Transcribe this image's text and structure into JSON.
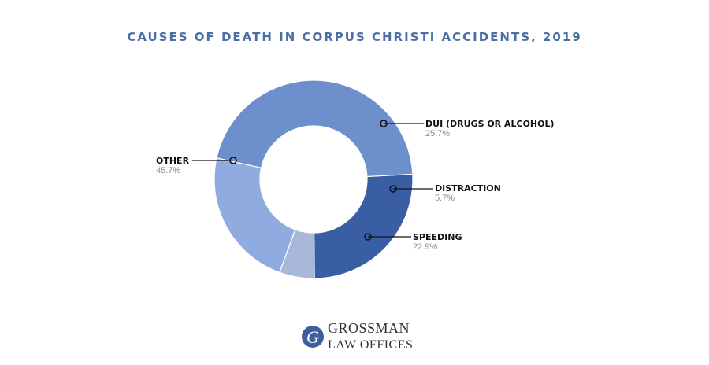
{
  "chart_data": {
    "type": "pie",
    "donut": true,
    "title": "CAUSES OF DEATH IN CORPUS CHRISTI ACCIDENTS, 2019",
    "start_angle_deg": 87,
    "slices": [
      {
        "label": "DUI (DRUGS OR ALCOHOL)",
        "value": 25.7,
        "pct_label": "25.7%",
        "color": "#3a5ea3",
        "side": "right"
      },
      {
        "label": "DISTRACTION",
        "value": 5.7,
        "pct_label": "5.7%",
        "color": "#a7b8d8",
        "side": "right"
      },
      {
        "label": "SPEEDING",
        "value": 22.9,
        "pct_label": "22.9%",
        "color": "#8fabdf",
        "side": "right"
      },
      {
        "label": "OTHER",
        "value": 45.7,
        "pct_label": "45.7%",
        "color": "#6d8fcc",
        "side": "left"
      }
    ]
  },
  "logo": {
    "initial": "G",
    "line1": "GROSSMAN",
    "line2": "LAW OFFICES",
    "color": "#3e5e9e"
  }
}
